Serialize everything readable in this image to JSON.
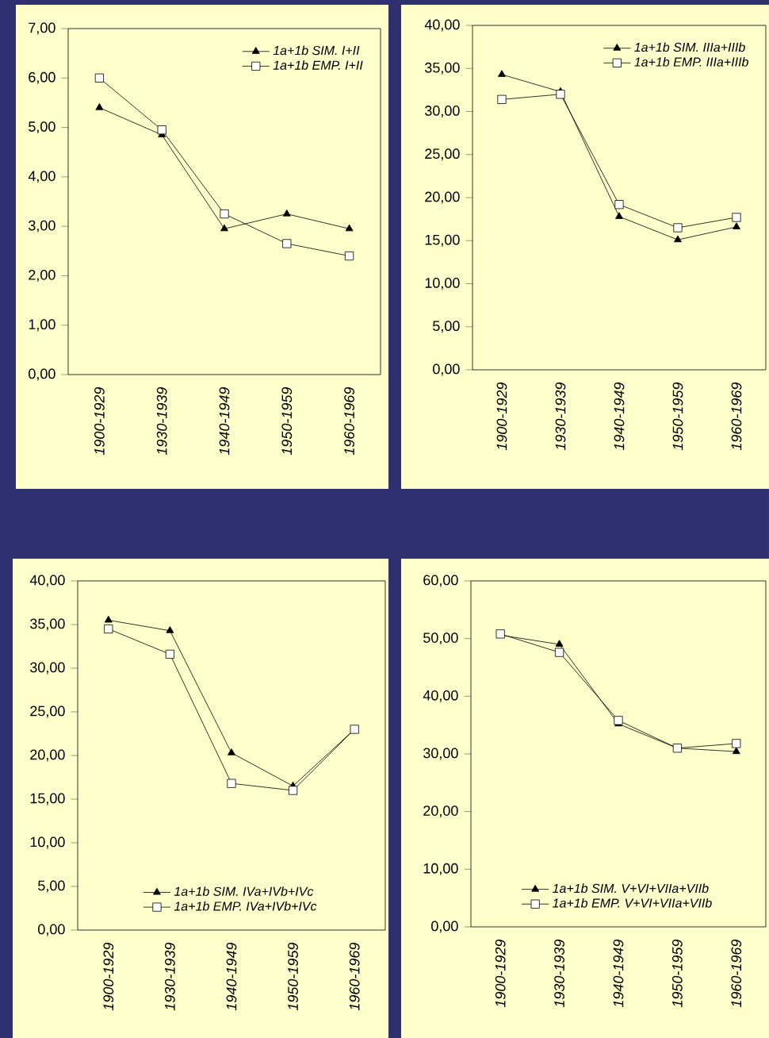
{
  "chart_data": [
    {
      "type": "line",
      "categories": [
        "1900-1929",
        "1930-1939",
        "1940-1949",
        "1950-1959",
        "1960-1969"
      ],
      "legend": "top right",
      "ylim": [
        0,
        7
      ],
      "yticks": [
        {
          "value": 0,
          "label": "0,00"
        },
        {
          "value": 1,
          "label": "1,00"
        },
        {
          "value": 2,
          "label": "2,00"
        },
        {
          "value": 3,
          "label": "3,00"
        },
        {
          "value": 4,
          "label": "4,00"
        },
        {
          "value": 5,
          "label": "5,00"
        },
        {
          "value": 6,
          "label": "6,00"
        },
        {
          "value": 7,
          "label": "7,00"
        }
      ],
      "series": [
        {
          "name": "1a+1b SIM. I+II",
          "color": "#000000",
          "marker": "triangle",
          "values": [
            5.4,
            4.85,
            2.95,
            3.25,
            2.95
          ]
        },
        {
          "name": "1a+1b EMP. I+II",
          "color": "#000000",
          "marker": "square",
          "values": [
            6.0,
            4.95,
            3.25,
            2.65,
            2.4
          ]
        }
      ]
    },
    {
      "type": "line",
      "categories": [
        "1900-1929",
        "1930-1939",
        "1940-1949",
        "1950-1959",
        "1960-1969"
      ],
      "legend": "top right",
      "ylim": [
        0,
        40
      ],
      "yticks": [
        {
          "value": 0,
          "label": "0,00"
        },
        {
          "value": 5,
          "label": "5,00"
        },
        {
          "value": 10,
          "label": "10,00"
        },
        {
          "value": 15,
          "label": "15,00"
        },
        {
          "value": 20,
          "label": "20,00"
        },
        {
          "value": 25,
          "label": "25,00"
        },
        {
          "value": 30,
          "label": "30,00"
        },
        {
          "value": 35,
          "label": "35,00"
        },
        {
          "value": 40,
          "label": "40,00"
        }
      ],
      "series": [
        {
          "name": "1a+1b SIM. IIIa+IIIb",
          "color": "#000000",
          "marker": "triangle",
          "values": [
            34.3,
            32.3,
            17.8,
            15.1,
            16.6
          ]
        },
        {
          "name": "1a+1b EMP. IIIa+IIIb",
          "color": "#000000",
          "marker": "square",
          "values": [
            31.4,
            32.0,
            19.2,
            16.5,
            17.7
          ]
        }
      ]
    },
    {
      "type": "line",
      "categories": [
        "1900-1929",
        "1930-1939",
        "1940-1949",
        "1950-1959",
        "1960-1969"
      ],
      "legend": "bottom",
      "ylim": [
        0,
        40
      ],
      "yticks": [
        {
          "value": 0,
          "label": "0,00"
        },
        {
          "value": 5,
          "label": "5,00"
        },
        {
          "value": 10,
          "label": "10,00"
        },
        {
          "value": 15,
          "label": "15,00"
        },
        {
          "value": 20,
          "label": "20,00"
        },
        {
          "value": 25,
          "label": "25,00"
        },
        {
          "value": 30,
          "label": "30,00"
        },
        {
          "value": 35,
          "label": "35,00"
        },
        {
          "value": 40,
          "label": "40,00"
        }
      ],
      "series": [
        {
          "name": "1a+1b SIM. IVa+IVb+IVc",
          "color": "#000000",
          "marker": "triangle",
          "values": [
            35.5,
            34.3,
            20.3,
            16.5,
            23.0
          ]
        },
        {
          "name": "1a+1b EMP. IVa+IVb+IVc",
          "color": "#000000",
          "marker": "square",
          "values": [
            34.5,
            31.6,
            16.8,
            16.0,
            23.0
          ]
        }
      ]
    },
    {
      "type": "line",
      "categories": [
        "1900-1929",
        "1930-1939",
        "1940-1949",
        "1950-1959",
        "1960-1969"
      ],
      "legend": "bottom",
      "ylim": [
        0,
        60
      ],
      "yticks": [
        {
          "value": 0,
          "label": "0,00"
        },
        {
          "value": 10,
          "label": "10,00"
        },
        {
          "value": 20,
          "label": "20,00"
        },
        {
          "value": 30,
          "label": "30,00"
        },
        {
          "value": 40,
          "label": "40,00"
        },
        {
          "value": 50,
          "label": "50,00"
        },
        {
          "value": 60,
          "label": "60,00"
        }
      ],
      "series": [
        {
          "name": "1a+1b SIM. V+VI+VIIa+VIIb",
          "color": "#000000",
          "marker": "triangle",
          "values": [
            50.6,
            49.0,
            35.2,
            31.0,
            30.4
          ]
        },
        {
          "name": "1a+1b EMP. V+VI+VIIa+VIIb",
          "color": "#000000",
          "marker": "square",
          "values": [
            50.8,
            47.6,
            35.8,
            31.0,
            31.8
          ]
        }
      ]
    }
  ]
}
